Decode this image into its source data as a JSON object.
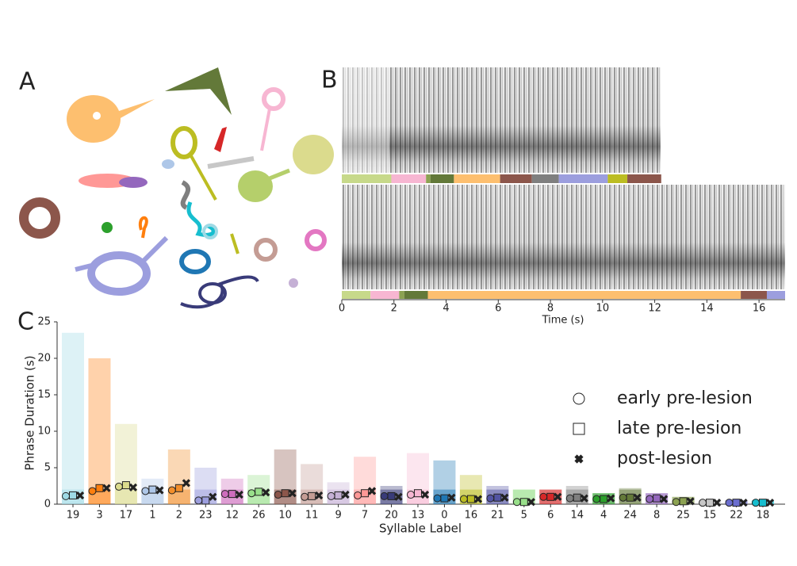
{
  "chart_data": [
    {
      "type": "embedding",
      "label": "A"
    },
    {
      "type": "spectrogram",
      "label": "B",
      "xlabel": "Time (s)",
      "xlim": [
        0,
        17
      ],
      "xticks": [
        0,
        2,
        4,
        6,
        8,
        10,
        12,
        14,
        16
      ],
      "tracks": [
        {
          "segments": [
            {
              "start": 0,
              "end": 1.9,
              "color": "#c7d98a"
            },
            {
              "start": 1.9,
              "end": 3.23,
              "color": "#f7b6d2"
            },
            {
              "start": 3.23,
              "end": 3.4,
              "color": "#8ca252"
            },
            {
              "start": 3.4,
              "end": 4.3,
              "color": "#637939"
            },
            {
              "start": 4.3,
              "end": 6.07,
              "color": "#fdbf6f"
            },
            {
              "start": 6.07,
              "end": 7.29,
              "color": "#8c564b"
            },
            {
              "start": 7.29,
              "end": 8.32,
              "color": "#7f7f7f"
            },
            {
              "start": 8.32,
              "end": 10.2,
              "color": "#9c9ede"
            },
            {
              "start": 10.2,
              "end": 10.95,
              "color": "#bcbd22"
            },
            {
              "start": 10.95,
              "end": 12.25,
              "color": "#8c564b"
            }
          ]
        },
        {
          "segments": [
            {
              "start": 0,
              "end": 1.1,
              "color": "#c7d98a"
            },
            {
              "start": 1.1,
              "end": 2.2,
              "color": "#f7b6d2"
            },
            {
              "start": 2.2,
              "end": 2.4,
              "color": "#8ca252"
            },
            {
              "start": 2.4,
              "end": 3.3,
              "color": "#637939"
            },
            {
              "start": 3.3,
              "end": 15.3,
              "color": "#fdbf6f"
            },
            {
              "start": 15.3,
              "end": 16.3,
              "color": "#8c564b"
            },
            {
              "start": 16.3,
              "end": 17,
              "color": "#9c9ede"
            }
          ]
        }
      ]
    },
    {
      "type": "strip",
      "label": "C",
      "ylabel": "Phrase Duration (s)",
      "xlabel": "Syllable Label",
      "categories": [
        "19",
        "3",
        "17",
        "1",
        "2",
        "23",
        "12",
        "26",
        "10",
        "11",
        "9",
        "7",
        "20",
        "13",
        "0",
        "16",
        "21",
        "5",
        "6",
        "14",
        "4",
        "24",
        "8",
        "25",
        "15",
        "22",
        "18"
      ],
      "colors": [
        "#9edae5",
        "#ff7f0e",
        "#dbdb8d",
        "#aec7e8",
        "#f28e2b",
        "#9c9ede",
        "#ce6dbd",
        "#98df8a",
        "#8c564b",
        "#c49c94",
        "#c5b0d5",
        "#ff9896",
        "#393b79",
        "#f7b6d2",
        "#1f77b4",
        "#bcbd22",
        "#5254a3",
        "#98df8a",
        "#d62728",
        "#7f7f7f",
        "#2ca02c",
        "#637939",
        "#9467bd",
        "#8ca252",
        "#c7c7c7",
        "#6b6ecf",
        "#17becf"
      ],
      "max": [
        23.5,
        20,
        11,
        3.5,
        7.5,
        5,
        3.5,
        4,
        7.5,
        5.5,
        3,
        6.5,
        2.5,
        7,
        6,
        4,
        2.5,
        2,
        2,
        2.5,
        1.5,
        2.2,
        1.5,
        1,
        0.5,
        0.5,
        0.5
      ],
      "ylim": [
        0,
        25
      ],
      "yticks": [
        0,
        5,
        10,
        15,
        20,
        25
      ],
      "legend": "right",
      "series": [
        {
          "name": "early pre-lesion",
          "marker": "circle",
          "values": [
            1.1,
            1.8,
            2.4,
            1.8,
            1.9,
            0.5,
            1.4,
            1.5,
            1.3,
            1.0,
            1.1,
            1.2,
            1.1,
            1.3,
            0.8,
            0.7,
            0.8,
            0.3,
            1.0,
            0.8,
            0.7,
            0.9,
            0.7,
            0.3,
            0.2,
            0.2,
            0.2
          ]
        },
        {
          "name": "late pre-lesion",
          "marker": "square",
          "values": [
            1.2,
            2.2,
            2.6,
            2.0,
            2.2,
            0.5,
            1.4,
            1.7,
            1.5,
            1.1,
            1.2,
            1.5,
            1.1,
            1.5,
            0.8,
            0.7,
            0.9,
            0.3,
            1.0,
            0.9,
            0.7,
            0.9,
            0.8,
            0.4,
            0.2,
            0.2,
            0.2
          ]
        },
        {
          "name": "post-lesion",
          "marker": "cross",
          "values": [
            1.2,
            2.2,
            2.3,
            1.9,
            2.9,
            1.0,
            1.3,
            1.6,
            1.5,
            1.2,
            1.3,
            1.8,
            1.0,
            1.3,
            0.9,
            0.7,
            0.9,
            0.3,
            1.0,
            0.8,
            0.8,
            0.9,
            0.7,
            0.4,
            0.2,
            0.2,
            0.2
          ]
        }
      ]
    }
  ]
}
